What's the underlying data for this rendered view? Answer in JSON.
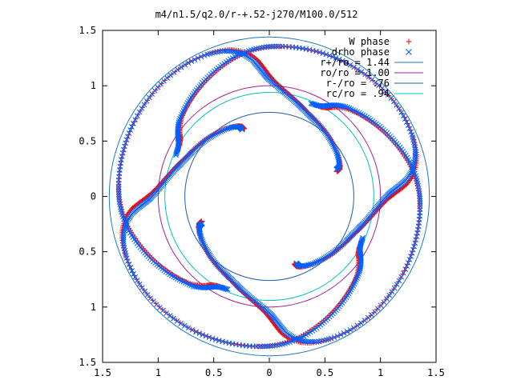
{
  "chart_data": {
    "type": "scatter",
    "title": "m4/n1.5/q2.0/r-+.52-j270/M100.0/512",
    "xlabel": "",
    "ylabel": "",
    "xlim": [
      -1.5,
      1.5
    ],
    "ylim": [
      -1.5,
      1.5
    ],
    "x_ticks": [
      {
        "v": -1.5,
        "label": "1.5"
      },
      {
        "v": -1.0,
        "label": "1"
      },
      {
        "v": -0.5,
        "label": "0.5"
      },
      {
        "v": 0.0,
        "label": "0"
      },
      {
        "v": 0.5,
        "label": "0.5"
      },
      {
        "v": 1.0,
        "label": "1"
      },
      {
        "v": 1.5,
        "label": "1.5"
      }
    ],
    "y_ticks": [
      {
        "v": 1.5,
        "label": "1.5"
      },
      {
        "v": 1.0,
        "label": "1"
      },
      {
        "v": 0.5,
        "label": "0.5"
      },
      {
        "v": 0.0,
        "label": "0"
      },
      {
        "v": -0.5,
        "label": "0.5"
      },
      {
        "v": -1.0,
        "label": "1"
      },
      {
        "v": -1.5,
        "label": "1.5"
      }
    ],
    "grid": false,
    "legend_position": "top-right",
    "series": [
      {
        "name": "W phase",
        "marker": "plus",
        "color": "#ff0000",
        "arms": 4,
        "phase_offset_deg": 0
      },
      {
        "name": "drho phase",
        "marker": "cross",
        "color": "#0060ff",
        "arms": 4,
        "phase_offset_deg": 2
      }
    ],
    "circles": [
      {
        "label": "r+/ro = 1.44",
        "r": 1.44,
        "color": "#1f77c0"
      },
      {
        "label": "ro/ro = 1.00",
        "r": 1.0,
        "color": "#a020a0"
      },
      {
        "label": "r-/ro = .76",
        "r": 0.76,
        "color": "#1f5fb0"
      },
      {
        "label": "rc/ro = .94",
        "r": 0.94,
        "color": "#00c0c0"
      }
    ],
    "arm_template": [
      [
        0.65,
        20
      ],
      [
        0.68,
        21
      ],
      [
        0.7,
        24
      ],
      [
        0.72,
        30
      ],
      [
        0.74,
        38
      ],
      [
        0.76,
        45
      ],
      [
        0.78,
        52
      ],
      [
        0.8,
        58
      ],
      [
        0.82,
        63
      ],
      [
        0.85,
        68
      ],
      [
        0.88,
        72
      ],
      [
        0.92,
        77
      ],
      [
        0.97,
        82
      ],
      [
        1.02,
        86
      ],
      [
        1.07,
        89
      ],
      [
        1.12,
        91
      ],
      [
        1.18,
        93
      ],
      [
        1.24,
        95
      ],
      [
        1.3,
        98
      ],
      [
        1.35,
        102
      ],
      [
        1.38,
        106
      ],
      [
        1.4,
        112
      ],
      [
        1.41,
        120
      ],
      [
        1.41,
        130
      ],
      [
        1.4,
        140
      ],
      [
        1.39,
        150
      ],
      [
        1.38,
        158
      ],
      [
        1.37,
        166
      ],
      [
        1.36,
        174
      ],
      [
        1.35,
        180
      ],
      [
        1.33,
        186
      ],
      [
        1.3,
        192
      ],
      [
        1.26,
        198
      ],
      [
        1.22,
        204
      ],
      [
        1.18,
        210
      ],
      [
        1.14,
        216
      ],
      [
        1.1,
        222
      ],
      [
        1.06,
        228
      ],
      [
        1.02,
        232
      ],
      [
        0.98,
        235
      ],
      [
        0.95,
        237
      ],
      [
        0.93,
        240
      ],
      [
        0.92,
        244
      ]
    ]
  }
}
